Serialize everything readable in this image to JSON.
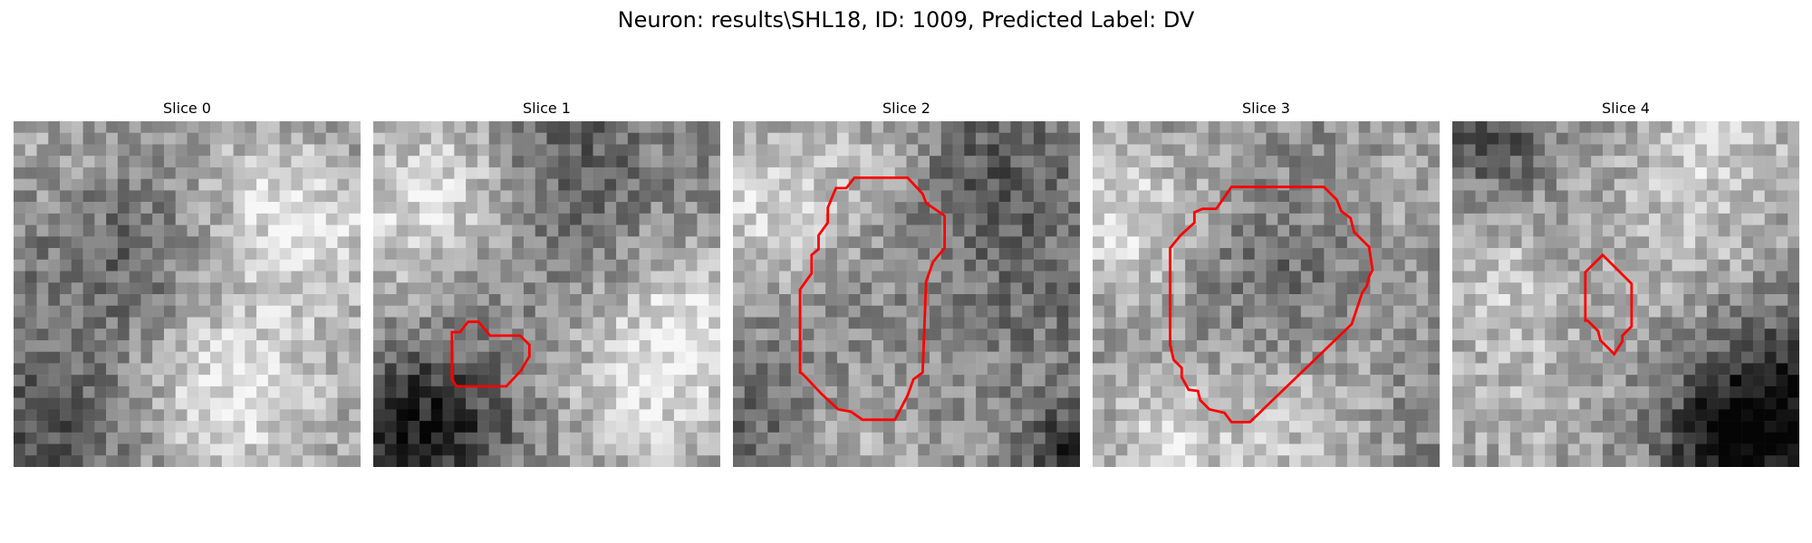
{
  "figure": {
    "title": "Neuron: results\\SHL18, ID: 1009, Predicted Label: DV",
    "contour_color": "#ff0000"
  },
  "panels": [
    {
      "label": "Slice 0",
      "has_contour": false,
      "seed": 11
    },
    {
      "label": "Slice 1",
      "has_contour": true,
      "seed": 23
    },
    {
      "label": "Slice 2",
      "has_contour": true,
      "seed": 37
    },
    {
      "label": "Slice 3",
      "has_contour": true,
      "seed": 41
    },
    {
      "label": "Slice 4",
      "has_contour": true,
      "seed": 59
    }
  ]
}
